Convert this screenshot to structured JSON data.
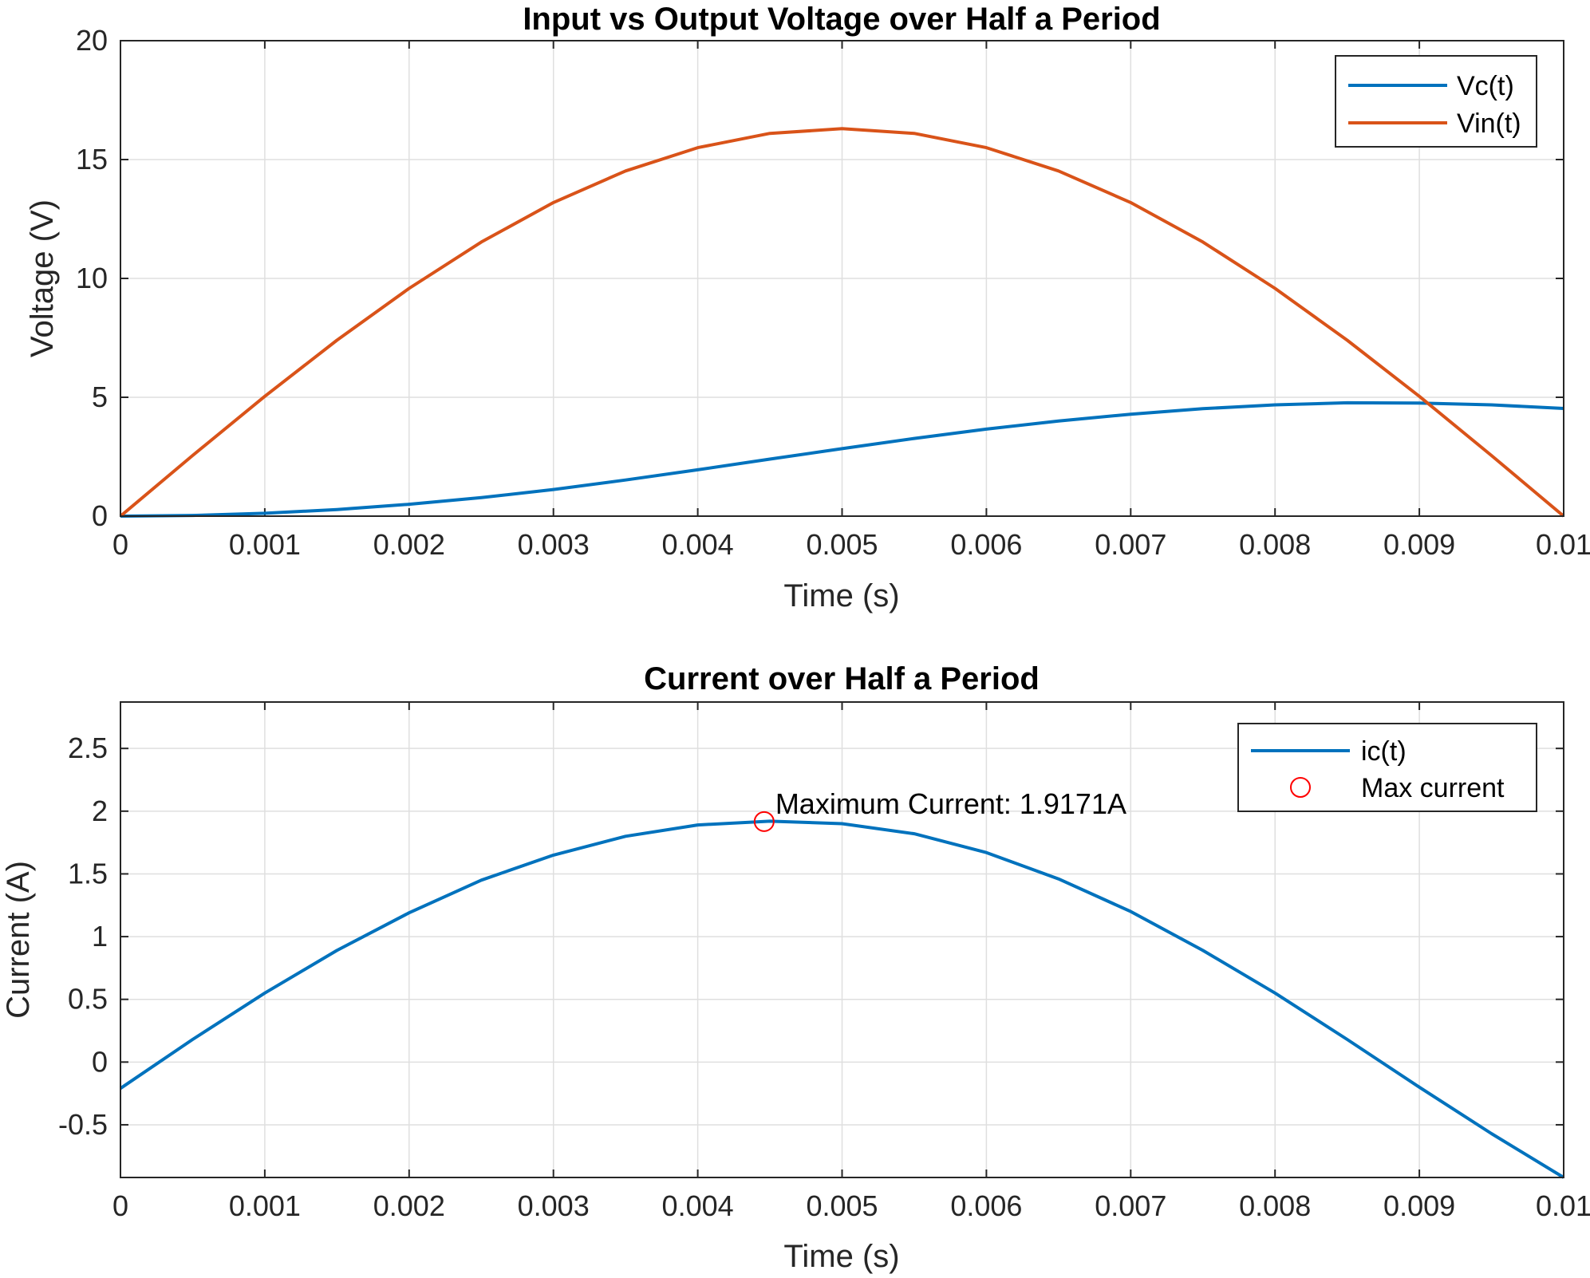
{
  "chart_data": [
    {
      "type": "line",
      "title": "Input vs Output Voltage over Half a Period",
      "xlabel": "Time (s)",
      "ylabel": "Voltage (V)",
      "xlim": [
        0,
        0.01
      ],
      "ylim": [
        0,
        20
      ],
      "xticks": [
        0,
        0.001,
        0.002,
        0.003,
        0.004,
        0.005,
        0.006,
        0.007,
        0.008,
        0.009,
        0.01
      ],
      "xtick_labels": [
        "0",
        "0.001",
        "0.002",
        "0.003",
        "0.004",
        "0.005",
        "0.006",
        "0.007",
        "0.008",
        "0.009",
        "0.01"
      ],
      "yticks": [
        0,
        5,
        10,
        15,
        20
      ],
      "ytick_labels": [
        "0",
        "5",
        "10",
        "15",
        "20"
      ],
      "grid": true,
      "legend_position": "top-right",
      "series": [
        {
          "name": "Vc(t)",
          "color": "#0072BD",
          "x": [
            0,
            0.0005,
            0.001,
            0.0015,
            0.002,
            0.0025,
            0.003,
            0.0035,
            0.004,
            0.0045,
            0.005,
            0.0055,
            0.006,
            0.0065,
            0.007,
            0.0075,
            0.008,
            0.0085,
            0.009,
            0.0095,
            0.01
          ],
          "y": [
            0,
            0.03,
            0.12,
            0.28,
            0.5,
            0.78,
            1.12,
            1.52,
            1.95,
            2.4,
            2.84,
            3.27,
            3.66,
            4.0,
            4.29,
            4.52,
            4.68,
            4.77,
            4.76,
            4.68,
            4.53
          ]
        },
        {
          "name": "Vin(t)",
          "color": "#D95319",
          "x": [
            0,
            0.0005,
            0.001,
            0.0015,
            0.002,
            0.0025,
            0.003,
            0.0035,
            0.004,
            0.0045,
            0.005,
            0.0055,
            0.006,
            0.0065,
            0.007,
            0.0075,
            0.008,
            0.0085,
            0.009,
            0.0095,
            0.01
          ],
          "y": [
            0,
            2.55,
            5.04,
            7.4,
            9.58,
            11.53,
            13.19,
            14.52,
            15.5,
            16.1,
            16.3,
            16.1,
            15.5,
            14.52,
            13.19,
            11.53,
            9.58,
            7.4,
            5.04,
            2.55,
            0
          ]
        }
      ]
    },
    {
      "type": "line",
      "title": "Current over Half a Period",
      "xlabel": "Time (s)",
      "ylabel": "Current (A)",
      "xlim": [
        0,
        0.01
      ],
      "ylim": [
        -0.92,
        2.87
      ],
      "xticks": [
        0,
        0.001,
        0.002,
        0.003,
        0.004,
        0.005,
        0.006,
        0.007,
        0.008,
        0.009,
        0.01
      ],
      "xtick_labels": [
        "0",
        "0.001",
        "0.002",
        "0.003",
        "0.004",
        "0.005",
        "0.006",
        "0.007",
        "0.008",
        "0.009",
        "0.01"
      ],
      "yticks": [
        -0.5,
        0,
        0.5,
        1,
        1.5,
        2,
        2.5
      ],
      "ytick_labels": [
        "-0.5",
        "0",
        "0.5",
        "1",
        "1.5",
        "2",
        "2.5"
      ],
      "grid": true,
      "legend_position": "top-right",
      "series": [
        {
          "name": "ic(t)",
          "color": "#0072BD",
          "x": [
            0,
            0.0005,
            0.001,
            0.0015,
            0.002,
            0.0025,
            0.003,
            0.0035,
            0.004,
            0.0045,
            0.005,
            0.0055,
            0.006,
            0.0065,
            0.007,
            0.0075,
            0.008,
            0.0085,
            0.009,
            0.0095,
            0.01
          ],
          "y": [
            -0.21,
            0.18,
            0.55,
            0.89,
            1.19,
            1.45,
            1.65,
            1.8,
            1.89,
            1.92,
            1.9,
            1.82,
            1.67,
            1.46,
            1.2,
            0.89,
            0.55,
            0.18,
            -0.2,
            -0.57,
            -0.92
          ]
        }
      ],
      "markers": [
        {
          "name": "Max current",
          "x": 0.00446,
          "y": 1.9171,
          "color": "#FF0000",
          "shape": "circle"
        }
      ],
      "annotations": [
        {
          "text": "Maximum Current: 1.9171A",
          "x": 0.00446,
          "y": 1.9171
        }
      ]
    }
  ]
}
